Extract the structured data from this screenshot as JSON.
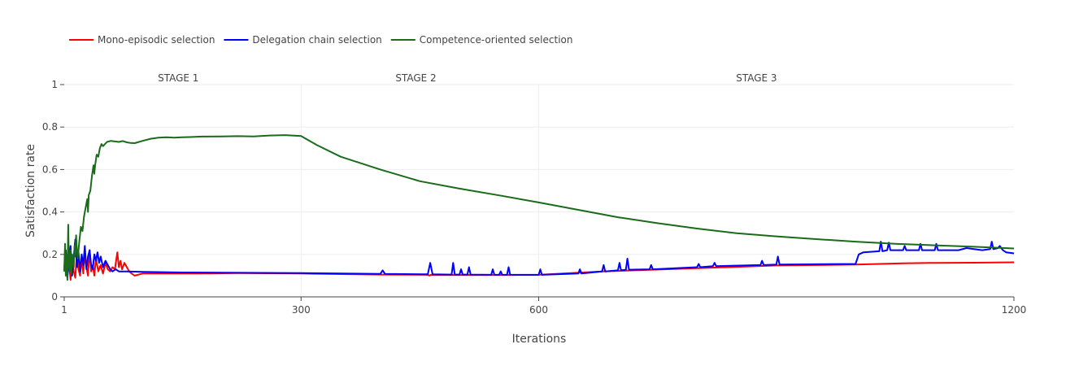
{
  "chart_data": {
    "type": "line",
    "xlabel": "Iterations",
    "ylabel": "Satisfaction rate",
    "xlim": [
      1,
      1200
    ],
    "ylim": [
      0,
      1
    ],
    "x_ticks": [
      "1",
      "300",
      "600",
      "1200"
    ],
    "x_tick_values": [
      1,
      300,
      600,
      1200
    ],
    "y_ticks": [
      "0",
      "0.2",
      "0.4",
      "0.6",
      "0.8",
      "1"
    ],
    "y_tick_values": [
      0,
      0.2,
      0.4,
      0.6,
      0.8,
      1
    ],
    "vertical_gridlines_at": [
      300,
      600
    ],
    "annotations": [
      {
        "text": "STAGE 1",
        "x": 145
      },
      {
        "text": "STAGE 2",
        "x": 445
      },
      {
        "text": "STAGE 3",
        "x": 875
      }
    ],
    "legend_position": "top-left",
    "grid": true,
    "series": [
      {
        "name": "Mono-episodic selection",
        "color": "#ff0000",
        "points": [
          [
            1,
            0.14
          ],
          [
            3,
            0.2
          ],
          [
            5,
            0.11
          ],
          [
            7,
            0.16
          ],
          [
            9,
            0.08
          ],
          [
            11,
            0.19
          ],
          [
            13,
            0.12
          ],
          [
            15,
            0.09
          ],
          [
            17,
            0.21
          ],
          [
            19,
            0.13
          ],
          [
            21,
            0.1
          ],
          [
            23,
            0.18
          ],
          [
            25,
            0.11
          ],
          [
            27,
            0.2
          ],
          [
            29,
            0.14
          ],
          [
            31,
            0.1
          ],
          [
            33,
            0.22
          ],
          [
            35,
            0.12
          ],
          [
            37,
            0.15
          ],
          [
            39,
            0.1
          ],
          [
            41,
            0.18
          ],
          [
            44,
            0.12
          ],
          [
            47,
            0.15
          ],
          [
            50,
            0.11
          ],
          [
            53,
            0.16
          ],
          [
            56,
            0.13
          ],
          [
            59,
            0.12
          ],
          [
            62,
            0.14
          ],
          [
            65,
            0.13
          ],
          [
            68,
            0.21
          ],
          [
            70,
            0.14
          ],
          [
            72,
            0.17
          ],
          [
            74,
            0.13
          ],
          [
            77,
            0.16
          ],
          [
            80,
            0.14
          ],
          [
            83,
            0.12
          ],
          [
            86,
            0.11
          ],
          [
            90,
            0.1
          ],
          [
            100,
            0.11
          ],
          [
            130,
            0.11
          ],
          [
            170,
            0.11
          ],
          [
            220,
            0.112
          ],
          [
            300,
            0.11
          ],
          [
            400,
            0.105
          ],
          [
            460,
            0.104
          ],
          [
            462,
            0.1
          ],
          [
            464,
            0.104
          ],
          [
            520,
            0.103
          ],
          [
            600,
            0.104
          ],
          [
            680,
            0.12
          ],
          [
            800,
            0.135
          ],
          [
            900,
            0.148
          ],
          [
            1000,
            0.152
          ],
          [
            1060,
            0.158
          ],
          [
            1100,
            0.16
          ],
          [
            1150,
            0.161
          ],
          [
            1200,
            0.163
          ]
        ]
      },
      {
        "name": "Delegation chain selection",
        "color": "#0000ff",
        "points": [
          [
            1,
            0.12
          ],
          [
            3,
            0.22
          ],
          [
            5,
            0.09
          ],
          [
            7,
            0.17
          ],
          [
            9,
            0.24
          ],
          [
            11,
            0.1
          ],
          [
            13,
            0.19
          ],
          [
            15,
            0.27
          ],
          [
            17,
            0.14
          ],
          [
            19,
            0.21
          ],
          [
            21,
            0.12
          ],
          [
            23,
            0.2
          ],
          [
            25,
            0.15
          ],
          [
            27,
            0.24
          ],
          [
            29,
            0.13
          ],
          [
            31,
            0.19
          ],
          [
            33,
            0.22
          ],
          [
            35,
            0.15
          ],
          [
            37,
            0.13
          ],
          [
            39,
            0.2
          ],
          [
            41,
            0.17
          ],
          [
            43,
            0.21
          ],
          [
            45,
            0.16
          ],
          [
            47,
            0.19
          ],
          [
            50,
            0.14
          ],
          [
            53,
            0.17
          ],
          [
            56,
            0.15
          ],
          [
            59,
            0.13
          ],
          [
            62,
            0.12
          ],
          [
            66,
            0.13
          ],
          [
            70,
            0.12
          ],
          [
            80,
            0.12
          ],
          [
            100,
            0.118
          ],
          [
            150,
            0.115
          ],
          [
            200,
            0.114
          ],
          [
            300,
            0.112
          ],
          [
            400,
            0.108
          ],
          [
            403,
            0.125
          ],
          [
            406,
            0.108
          ],
          [
            460,
            0.106
          ],
          [
            463,
            0.16
          ],
          [
            466,
            0.106
          ],
          [
            490,
            0.105
          ],
          [
            492,
            0.16
          ],
          [
            494,
            0.105
          ],
          [
            500,
            0.105
          ],
          [
            502,
            0.13
          ],
          [
            504,
            0.105
          ],
          [
            510,
            0.105
          ],
          [
            512,
            0.14
          ],
          [
            514,
            0.105
          ],
          [
            540,
            0.104
          ],
          [
            542,
            0.13
          ],
          [
            544,
            0.104
          ],
          [
            550,
            0.104
          ],
          [
            552,
            0.12
          ],
          [
            554,
            0.104
          ],
          [
            560,
            0.104
          ],
          [
            562,
            0.14
          ],
          [
            564,
            0.104
          ],
          [
            600,
            0.104
          ],
          [
            602,
            0.13
          ],
          [
            604,
            0.104
          ],
          [
            650,
            0.11
          ],
          [
            652,
            0.13
          ],
          [
            654,
            0.11
          ],
          [
            680,
            0.12
          ],
          [
            682,
            0.15
          ],
          [
            684,
            0.12
          ],
          [
            700,
            0.125
          ],
          [
            702,
            0.16
          ],
          [
            704,
            0.125
          ],
          [
            710,
            0.128
          ],
          [
            712,
            0.18
          ],
          [
            714,
            0.128
          ],
          [
            740,
            0.13
          ],
          [
            742,
            0.15
          ],
          [
            744,
            0.13
          ],
          [
            800,
            0.14
          ],
          [
            802,
            0.155
          ],
          [
            804,
            0.14
          ],
          [
            820,
            0.145
          ],
          [
            822,
            0.16
          ],
          [
            824,
            0.145
          ],
          [
            880,
            0.15
          ],
          [
            882,
            0.17
          ],
          [
            884,
            0.15
          ],
          [
            900,
            0.152
          ],
          [
            902,
            0.19
          ],
          [
            904,
            0.152
          ],
          [
            1000,
            0.155
          ],
          [
            1004,
            0.2
          ],
          [
            1010,
            0.21
          ],
          [
            1030,
            0.215
          ],
          [
            1032,
            0.26
          ],
          [
            1034,
            0.215
          ],
          [
            1040,
            0.22
          ],
          [
            1042,
            0.255
          ],
          [
            1044,
            0.22
          ],
          [
            1060,
            0.22
          ],
          [
            1062,
            0.24
          ],
          [
            1064,
            0.22
          ],
          [
            1080,
            0.22
          ],
          [
            1082,
            0.25
          ],
          [
            1084,
            0.22
          ],
          [
            1100,
            0.22
          ],
          [
            1102,
            0.25
          ],
          [
            1104,
            0.22
          ],
          [
            1130,
            0.22
          ],
          [
            1140,
            0.23
          ],
          [
            1160,
            0.22
          ],
          [
            1170,
            0.225
          ],
          [
            1172,
            0.26
          ],
          [
            1174,
            0.225
          ],
          [
            1180,
            0.23
          ],
          [
            1182,
            0.24
          ],
          [
            1186,
            0.22
          ],
          [
            1190,
            0.21
          ],
          [
            1200,
            0.205
          ]
        ]
      },
      {
        "name": "Competence-oriented selection",
        "color": "#1a6b1a",
        "points": [
          [
            1,
            0.12
          ],
          [
            2,
            0.25
          ],
          [
            3,
            0.1
          ],
          [
            4,
            0.2
          ],
          [
            5,
            0.08
          ],
          [
            6,
            0.34
          ],
          [
            7,
            0.15
          ],
          [
            8,
            0.12
          ],
          [
            9,
            0.22
          ],
          [
            10,
            0.11
          ],
          [
            11,
            0.2
          ],
          [
            12,
            0.16
          ],
          [
            13,
            0.14
          ],
          [
            14,
            0.24
          ],
          [
            15,
            0.19
          ],
          [
            16,
            0.29
          ],
          [
            17,
            0.22
          ],
          [
            18,
            0.18
          ],
          [
            20,
            0.26
          ],
          [
            22,
            0.33
          ],
          [
            24,
            0.31
          ],
          [
            26,
            0.38
          ],
          [
            28,
            0.42
          ],
          [
            30,
            0.46
          ],
          [
            31,
            0.4
          ],
          [
            32,
            0.48
          ],
          [
            34,
            0.5
          ],
          [
            36,
            0.57
          ],
          [
            38,
            0.62
          ],
          [
            39,
            0.58
          ],
          [
            40,
            0.62
          ],
          [
            42,
            0.67
          ],
          [
            44,
            0.66
          ],
          [
            46,
            0.7
          ],
          [
            48,
            0.72
          ],
          [
            50,
            0.71
          ],
          [
            55,
            0.73
          ],
          [
            60,
            0.735
          ],
          [
            65,
            0.732
          ],
          [
            70,
            0.73
          ],
          [
            75,
            0.734
          ],
          [
            80,
            0.728
          ],
          [
            85,
            0.725
          ],
          [
            90,
            0.724
          ],
          [
            100,
            0.735
          ],
          [
            110,
            0.745
          ],
          [
            120,
            0.75
          ],
          [
            130,
            0.752
          ],
          [
            140,
            0.75
          ],
          [
            150,
            0.752
          ],
          [
            160,
            0.753
          ],
          [
            175,
            0.755
          ],
          [
            200,
            0.756
          ],
          [
            220,
            0.757
          ],
          [
            240,
            0.756
          ],
          [
            260,
            0.76
          ],
          [
            280,
            0.762
          ],
          [
            300,
            0.758
          ],
          [
            320,
            0.715
          ],
          [
            350,
            0.66
          ],
          [
            400,
            0.6
          ],
          [
            450,
            0.545
          ],
          [
            500,
            0.51
          ],
          [
            550,
            0.478
          ],
          [
            600,
            0.445
          ],
          [
            650,
            0.41
          ],
          [
            700,
            0.375
          ],
          [
            750,
            0.347
          ],
          [
            800,
            0.322
          ],
          [
            850,
            0.3
          ],
          [
            900,
            0.285
          ],
          [
            950,
            0.272
          ],
          [
            1000,
            0.26
          ],
          [
            1050,
            0.25
          ],
          [
            1100,
            0.243
          ],
          [
            1150,
            0.236
          ],
          [
            1200,
            0.228
          ]
        ]
      }
    ]
  }
}
